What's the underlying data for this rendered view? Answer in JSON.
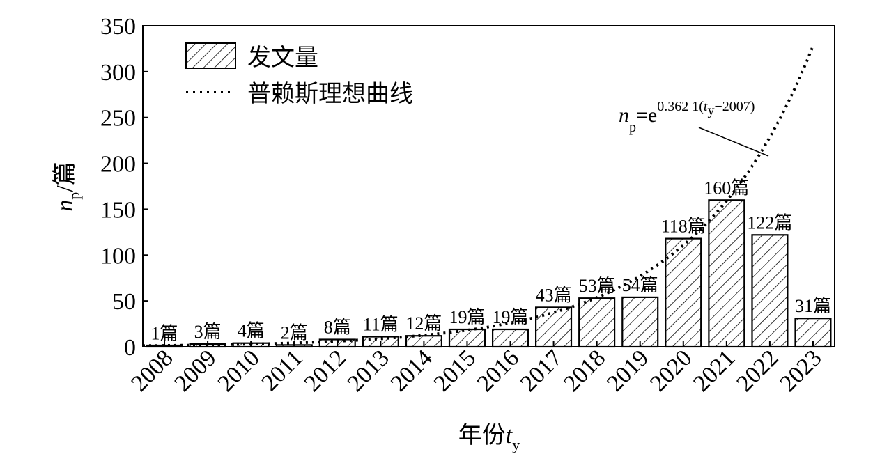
{
  "chart_data": {
    "type": "bar",
    "categories": [
      "2008",
      "2009",
      "2010",
      "2011",
      "2012",
      "2013",
      "2014",
      "2015",
      "2016",
      "2017",
      "2018",
      "2019",
      "2020",
      "2021",
      "2022",
      "2023"
    ],
    "series": [
      {
        "name": "发文量",
        "values": [
          1,
          3,
          4,
          2,
          8,
          11,
          12,
          19,
          19,
          43,
          53,
          54,
          118,
          160,
          122,
          31
        ],
        "data_labels": [
          "1篇",
          "3篇",
          "4篇",
          "2篇",
          "8篇",
          "11篇",
          "12篇",
          "19篇",
          "19篇",
          "43篇",
          "53篇",
          "54篇",
          "118篇",
          "160篇",
          "122篇",
          "31篇"
        ],
        "fill": "hatch"
      }
    ],
    "curve": {
      "name": "普赖斯理想曲线",
      "style": "dotted",
      "coefficient": 0.3621,
      "base_year": 2007,
      "x_start": 2007.5,
      "x_end": 2023
    },
    "formula_annotation": {
      "lhs": "n",
      "lhs_sub": "p",
      "eq": "=e",
      "exp_prefix": "0.362 1(",
      "exp_var": "t",
      "exp_var_sub": "y",
      "exp_suffix": "−2007)"
    },
    "xlabel": "年份",
    "xlabel_var": "t",
    "xlabel_var_sub": "y",
    "ylabel": "/篇",
    "ylabel_var": "n",
    "ylabel_var_sub": "p",
    "ylim": [
      0,
      350
    ],
    "yticks": [
      0,
      50,
      100,
      150,
      200,
      250,
      300,
      350
    ],
    "legend_position": "top-left",
    "grid": false,
    "colors": {
      "bar_stroke": "#000000",
      "hatch": "#000000",
      "background": "#ffffff"
    }
  }
}
